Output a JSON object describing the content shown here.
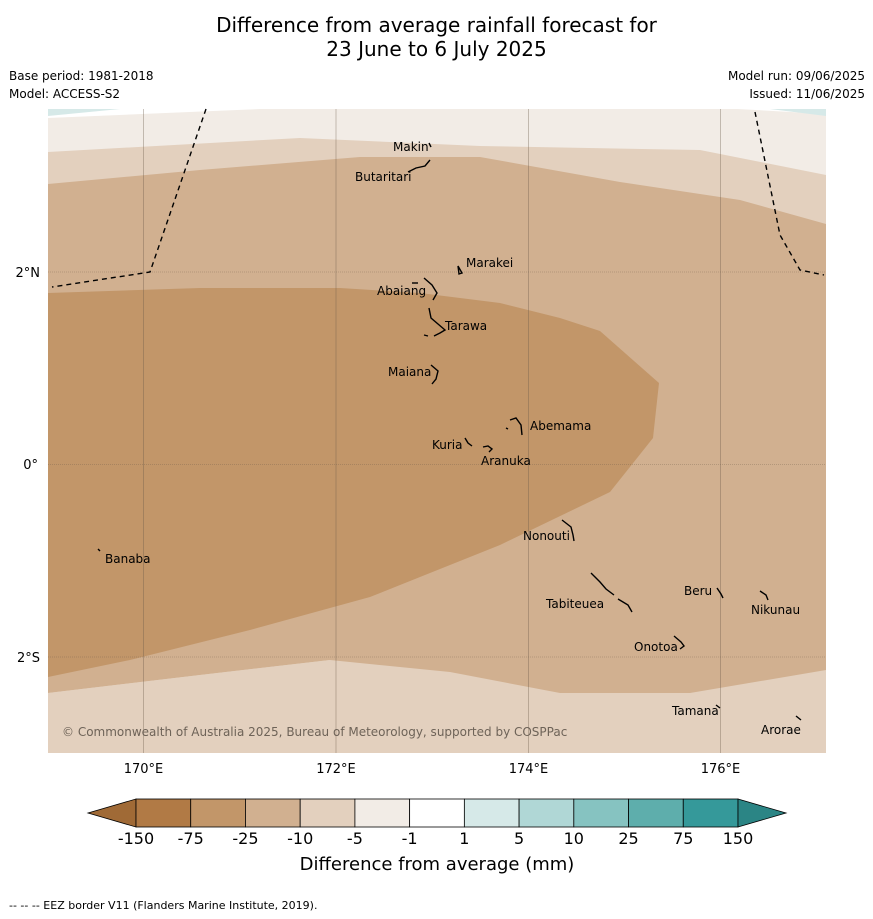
{
  "title_line1": "Difference from average rainfall forecast for",
  "title_line2": "23 June to 6 July 2025",
  "base_period": "Base period: 1981-2018",
  "model": "Model: ACCESS-S2",
  "model_run": "Model run: 09/06/2025",
  "issued": "Issued: 11/06/2025",
  "copyright": "© Commonwealth of Australia 2025, Bureau of Meteorology, supported by COSPPac",
  "axes": {
    "x_ticks": [
      "170°E",
      "172°E",
      "174°E",
      "176°E"
    ],
    "y_ticks": [
      "2°N",
      "0°",
      "2°S"
    ]
  },
  "places": [
    {
      "name": "Makin"
    },
    {
      "name": "Butaritari"
    },
    {
      "name": "Marakei"
    },
    {
      "name": "Abaiang"
    },
    {
      "name": "Tarawa"
    },
    {
      "name": "Maiana"
    },
    {
      "name": "Abemama"
    },
    {
      "name": "Kuria"
    },
    {
      "name": "Aranuka"
    },
    {
      "name": "Nonouti"
    },
    {
      "name": "Banaba"
    },
    {
      "name": "Beru"
    },
    {
      "name": "Nikunau"
    },
    {
      "name": "Tabiteuea"
    },
    {
      "name": "Onotoa"
    },
    {
      "name": "Tamana"
    },
    {
      "name": "Arorae"
    }
  ],
  "legend": {
    "title": "Difference from average (mm)",
    "tick_labels": [
      "-150",
      "-75",
      "-25",
      "-10",
      "-5",
      "-1",
      "1",
      "5",
      "10",
      "25",
      "75",
      "150"
    ],
    "colors": [
      "#b17a45",
      "#c29669",
      "#d1b090",
      "#e3d0be",
      "#f2ece6",
      "#ffffff",
      "#d6e9e8",
      "#b0d7d6",
      "#86c3c1",
      "#5eaeac",
      "#35999a"
    ],
    "low_extend_color": "#a06a36",
    "high_extend_color": "#2b8585"
  },
  "footer": "-- -- -- EEZ border V11 (Flanders Marine Institute, 2019)."
}
